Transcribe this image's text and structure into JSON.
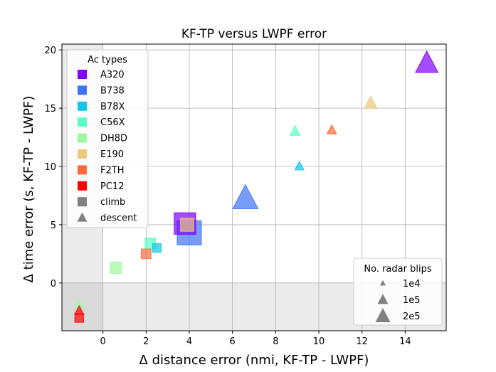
{
  "chart_data": {
    "type": "scatter",
    "title": "KF-TP versus LWPF error",
    "xlabel": "Δ distance error (nmi, KF-TP - LWPF)",
    "ylabel": "Δ time error (s, KF-TP - LWPF)",
    "xlim": [
      -1.9,
      15.9
    ],
    "ylim": [
      -4.1,
      20.5
    ],
    "xticks": [
      0,
      2,
      4,
      6,
      8,
      10,
      12,
      14
    ],
    "yticks": [
      0,
      5,
      10,
      15,
      20
    ],
    "grid": true,
    "shaded_regions": [
      {
        "x": [
          -1.9,
          0
        ],
        "y": [
          -4.1,
          20.5
        ]
      },
      {
        "x": [
          -1.9,
          15.9
        ],
        "y": [
          -4.1,
          0
        ]
      }
    ],
    "legend_types": {
      "title": "Ac types",
      "position": "top-left",
      "items": [
        {
          "label": "A320",
          "color": "#8000ff",
          "shape": "square"
        },
        {
          "label": "B738",
          "color": "#3e73f6",
          "shape": "square"
        },
        {
          "label": "B78X",
          "color": "#17c5e8",
          "shape": "square"
        },
        {
          "label": "C56X",
          "color": "#5affc8",
          "shape": "square"
        },
        {
          "label": "DH8D",
          "color": "#a0f8a0",
          "shape": "square"
        },
        {
          "label": "E190",
          "color": "#ebc87a",
          "shape": "square"
        },
        {
          "label": "F2TH",
          "color": "#ff6a3c",
          "shape": "square"
        },
        {
          "label": "PC12",
          "color": "#ff0000",
          "shape": "square"
        },
        {
          "label": "climb",
          "color": "#808080",
          "shape": "square"
        },
        {
          "label": "descent",
          "color": "#808080",
          "shape": "triangle"
        }
      ]
    },
    "legend_sizes": {
      "title": "No. radar blips",
      "position": "lower-right",
      "items": [
        {
          "label": "1e4",
          "blips": 10000
        },
        {
          "label": "1e5",
          "blips": 100000
        },
        {
          "label": "2e5",
          "blips": 200000
        }
      ]
    },
    "series": [
      {
        "name": "A320",
        "phase": "climb",
        "x": 3.8,
        "y": 5.1,
        "blips": 150000
      },
      {
        "name": "A320",
        "phase": "descent",
        "x": 15.0,
        "y": 18.8,
        "blips": 150000
      },
      {
        "name": "B738",
        "phase": "climb",
        "x": 4.0,
        "y": 4.3,
        "blips": 200000
      },
      {
        "name": "B738",
        "phase": "descent",
        "x": 6.6,
        "y": 7.2,
        "blips": 200000
      },
      {
        "name": "B78X",
        "phase": "climb",
        "x": 2.5,
        "y": 3.0,
        "blips": 10000
      },
      {
        "name": "B78X",
        "phase": "descent",
        "x": 9.1,
        "y": 10.0,
        "blips": 10000
      },
      {
        "name": "C56X",
        "phase": "climb",
        "x": 2.2,
        "y": 3.4,
        "blips": 20000
      },
      {
        "name": "C56X",
        "phase": "descent",
        "x": 8.9,
        "y": 13.0,
        "blips": 15000
      },
      {
        "name": "DH8D",
        "phase": "climb",
        "x": 0.6,
        "y": 1.3,
        "blips": 25000
      },
      {
        "name": "DH8D",
        "phase": "descent",
        "x": -1.1,
        "y": -1.9,
        "blips": 10000
      },
      {
        "name": "E190",
        "phase": "climb",
        "x": 3.9,
        "y": 5.0,
        "blips": 40000
      },
      {
        "name": "E190",
        "phase": "descent",
        "x": 12.4,
        "y": 15.4,
        "blips": 30000
      },
      {
        "name": "F2TH",
        "phase": "climb",
        "x": 2.0,
        "y": 2.5,
        "blips": 15000
      },
      {
        "name": "F2TH",
        "phase": "descent",
        "x": 10.6,
        "y": 13.1,
        "blips": 12000
      },
      {
        "name": "PC12",
        "phase": "climb",
        "x": -1.1,
        "y": -3.0,
        "blips": 10000
      },
      {
        "name": "PC12",
        "phase": "descent",
        "x": -1.1,
        "y": -2.4,
        "blips": 10000
      }
    ]
  }
}
